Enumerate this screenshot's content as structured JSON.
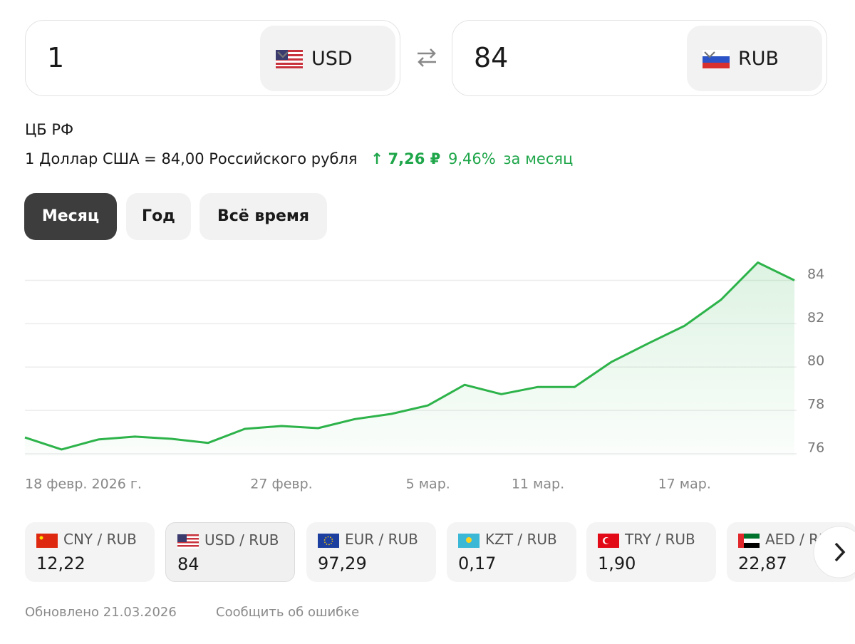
{
  "converter": {
    "from": {
      "amount": "1",
      "currency": "USD"
    },
    "to": {
      "amount": "84",
      "currency": "RUB"
    }
  },
  "source": "ЦБ РФ",
  "rate": {
    "text": "1 Доллар США = 84,00 Российского рубля",
    "change": "7,26 ₽",
    "percent": "9,46%",
    "period": "за месяц"
  },
  "tabs": [
    "Месяц",
    "Год",
    "Всё время"
  ],
  "chart_data": {
    "type": "line",
    "categories": [
      "18 февр. 2026 г.",
      null,
      null,
      null,
      null,
      null,
      null,
      "27 февр.",
      null,
      null,
      null,
      "5 мар.",
      null,
      null,
      "11 мар.",
      null,
      null,
      null,
      "17 мар.",
      null,
      null,
      null
    ],
    "series": [
      {
        "color": "#2db34a",
        "values": [
          76.75,
          76.2,
          76.66,
          76.79,
          76.69,
          76.5,
          77.15,
          77.28,
          77.18,
          77.6,
          77.84,
          78.23,
          79.18,
          78.75,
          79.08,
          79.08,
          80.23,
          81.08,
          81.9,
          83.11,
          84.82,
          84.0
        ]
      }
    ],
    "ylim": [
      75.9,
      85.1
    ],
    "yticks": [
      76,
      78,
      80,
      82,
      84
    ],
    "grid": true
  },
  "pairs": [
    {
      "name": "CNY / RUB",
      "value": "12,22"
    },
    {
      "name": "USD / RUB",
      "value": "84"
    },
    {
      "name": "EUR / RUB",
      "value": "97,29"
    },
    {
      "name": "KZT / RUB",
      "value": "0,17"
    },
    {
      "name": "TRY / RUB",
      "value": "1,90"
    },
    {
      "name": "AED / RUB",
      "value": "22,87"
    }
  ],
  "footer": {
    "updated": "Обновлено 21.03.2026",
    "report": "Сообщить об ошибке"
  }
}
